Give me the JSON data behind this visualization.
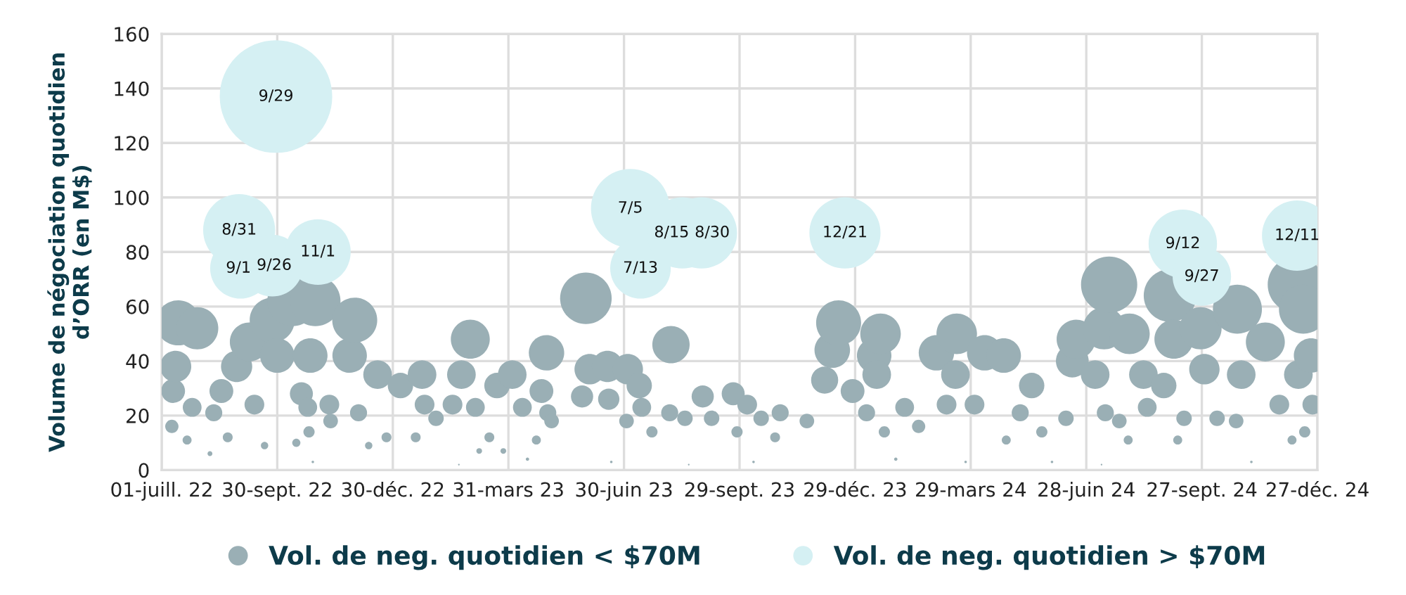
{
  "chart_data": {
    "type": "bubble",
    "ylabel": "Volume de négociation quotidien\nd’ORR (en M$)",
    "xlim": [
      "2022-07-01",
      "2024-12-27"
    ],
    "xticks": [
      {
        "value": "2022-07-01",
        "label": "01-juill. 22"
      },
      {
        "value": "2022-09-30",
        "label": "30-sept. 22"
      },
      {
        "value": "2022-12-30",
        "label": "30-déc. 22"
      },
      {
        "value": "2023-03-31",
        "label": "31-mars 23"
      },
      {
        "value": "2023-06-30",
        "label": "30-juin 23"
      },
      {
        "value": "2023-09-29",
        "label": "29-sept. 23"
      },
      {
        "value": "2023-12-29",
        "label": "29-déc. 23"
      },
      {
        "value": "2024-03-29",
        "label": "29-mars 24"
      },
      {
        "value": "2024-06-28",
        "label": "28-juin 24"
      },
      {
        "value": "2024-09-27",
        "label": "27-sept. 24"
      },
      {
        "value": "2024-12-27",
        "label": "27-déc. 24"
      }
    ],
    "ylim": [
      0,
      160
    ],
    "yticks": [
      0,
      20,
      40,
      60,
      80,
      100,
      120,
      140,
      160
    ],
    "grid": true,
    "legend": "bottom",
    "series": [
      {
        "name": "Vol. de neg. quotidien < $70M",
        "color": "#9aafb5",
        "x": [
          "2022-07-09",
          "2022-07-10",
          "2022-07-12",
          "2022-07-14",
          "2022-07-21",
          "2022-07-25",
          "2022-07-29",
          "2022-08-08",
          "2022-08-11",
          "2022-08-17",
          "2022-08-22",
          "2022-08-29",
          "2022-09-08",
          "2022-09-12",
          "2022-09-20",
          "2022-09-26",
          "2022-09-30",
          "2022-10-12",
          "2022-10-15",
          "2022-10-19",
          "2022-10-24",
          "2022-10-25",
          "2022-10-26",
          "2022-10-28",
          "2022-10-30",
          "2022-11-10",
          "2022-11-11",
          "2022-11-26",
          "2022-11-30",
          "2022-12-03",
          "2022-12-11",
          "2022-12-18",
          "2022-12-25",
          "2023-01-05",
          "2023-01-17",
          "2023-01-22",
          "2023-01-24",
          "2023-02-02",
          "2023-02-15",
          "2023-02-20",
          "2023-02-22",
          "2023-03-01",
          "2023-03-05",
          "2023-03-08",
          "2023-03-16",
          "2023-03-22",
          "2023-03-27",
          "2023-04-03",
          "2023-04-11",
          "2023-04-15",
          "2023-04-22",
          "2023-04-26",
          "2023-04-30",
          "2023-05-01",
          "2023-05-04",
          "2023-05-28",
          "2023-05-31",
          "2023-06-03",
          "2023-06-17",
          "2023-06-18",
          "2023-06-20",
          "2023-07-02",
          "2023-07-03",
          "2023-07-12",
          "2023-07-14",
          "2023-07-22",
          "2023-08-05",
          "2023-08-06",
          "2023-08-17",
          "2023-08-20",
          "2023-08-31",
          "2023-09-07",
          "2023-09-24",
          "2023-09-27",
          "2023-10-05",
          "2023-10-10",
          "2023-10-16",
          "2023-10-27",
          "2023-10-31",
          "2023-11-21",
          "2023-12-05",
          "2023-12-11",
          "2023-12-16",
          "2023-12-27",
          "2024-01-07",
          "2024-01-13",
          "2024-01-15",
          "2024-01-18",
          "2024-01-21",
          "2024-01-30",
          "2024-02-06",
          "2024-02-17",
          "2024-03-02",
          "2024-03-10",
          "2024-03-17",
          "2024-03-18",
          "2024-03-25",
          "2024-04-01",
          "2024-04-09",
          "2024-04-24",
          "2024-04-26",
          "2024-05-07",
          "2024-05-16",
          "2024-05-24",
          "2024-06-01",
          "2024-06-12",
          "2024-06-17",
          "2024-06-20",
          "2024-07-05",
          "2024-07-10",
          "2024-07-12",
          "2024-07-13",
          "2024-07-16",
          "2024-07-24",
          "2024-07-31",
          "2024-08-01",
          "2024-08-12",
          "2024-08-15",
          "2024-08-28",
          "2024-09-02",
          "2024-09-05",
          "2024-09-08",
          "2024-09-13",
          "2024-09-26",
          "2024-09-29",
          "2024-10-09",
          "2024-10-24",
          "2024-10-25",
          "2024-10-28",
          "2024-11-05",
          "2024-11-16",
          "2024-11-27",
          "2024-12-07",
          "2024-12-10",
          "2024-12-12",
          "2024-12-16",
          "2024-12-17",
          "2024-12-22",
          "2024-12-23"
        ],
        "values": [
          16,
          29,
          38,
          54,
          11,
          23,
          52,
          6,
          21,
          29,
          12,
          38,
          47,
          24,
          9,
          55,
          42,
          62,
          10,
          28,
          23,
          14,
          42,
          3,
          62,
          24,
          18,
          42,
          55,
          21,
          9,
          35,
          12,
          31,
          12,
          35,
          24,
          19,
          24,
          2,
          35,
          48,
          23,
          7,
          12,
          31,
          7,
          35,
          23,
          4,
          11,
          29,
          43,
          21,
          18,
          27,
          63,
          37,
          38,
          26,
          3,
          18,
          37,
          31,
          23,
          14,
          21,
          46,
          19,
          2,
          27,
          19,
          28,
          14,
          24,
          3,
          19,
          12,
          21,
          18,
          33,
          44,
          54,
          29,
          21,
          42,
          35,
          50,
          14,
          4,
          23,
          16,
          43,
          24,
          35,
          50,
          3,
          24,
          43,
          42,
          11,
          21,
          31,
          14,
          3,
          19,
          40,
          48,
          35,
          2,
          52,
          21,
          68,
          18,
          11,
          50,
          35,
          23,
          31,
          64,
          48,
          11,
          19,
          52,
          37,
          19,
          18,
          59,
          35,
          3,
          47,
          24,
          11,
          68,
          35,
          59,
          14,
          42,
          24
        ],
        "sizes": [
          0.014,
          0.045,
          0.077,
          0.16,
          0.0064,
          0.028,
          0.14,
          0.0019,
          0.023,
          0.045,
          0.0077,
          0.077,
          0.12,
          0.031,
          0.0043,
          0.16,
          0.094,
          0.2,
          0.0053,
          0.042,
          0.028,
          0.01,
          0.094,
          0.0005,
          0.2,
          0.031,
          0.017,
          0.094,
          0.16,
          0.023,
          0.0043,
          0.065,
          0.0077,
          0.051,
          0.0077,
          0.065,
          0.031,
          0.019,
          0.031,
          0.0002,
          0.065,
          0.12,
          0.028,
          0.0026,
          0.0077,
          0.051,
          0.0026,
          0.065,
          0.028,
          0.0009,
          0.0064,
          0.045,
          0.099,
          0.023,
          0.017,
          0.039,
          0.21,
          0.073,
          0.077,
          0.036,
          0.0005,
          0.017,
          0.073,
          0.051,
          0.028,
          0.01,
          0.023,
          0.11,
          0.019,
          0.0002,
          0.039,
          0.019,
          0.042,
          0.01,
          0.031,
          0.0005,
          0.019,
          0.0077,
          0.023,
          0.017,
          0.058,
          0.1,
          0.16,
          0.045,
          0.023,
          0.094,
          0.065,
          0.13,
          0.01,
          0.0009,
          0.028,
          0.014,
          0.099,
          0.031,
          0.065,
          0.13,
          0.0005,
          0.031,
          0.099,
          0.094,
          0.0064,
          0.023,
          0.051,
          0.01,
          0.0005,
          0.019,
          0.085,
          0.12,
          0.065,
          0.0002,
          0.14,
          0.023,
          0.25,
          0.017,
          0.0064,
          0.13,
          0.065,
          0.028,
          0.051,
          0.22,
          0.12,
          0.0064,
          0.019,
          0.14,
          0.073,
          0.019,
          0.017,
          0.19,
          0.065,
          0.0005,
          0.12,
          0.031,
          0.0064,
          0.25,
          0.065,
          0.19,
          0.01,
          0.094,
          0.031
        ]
      },
      {
        "name": "Vol. de neg. quotidien > $70M",
        "color": "#d5f0f3",
        "x": [
          "2022-08-31",
          "2022-09-01",
          "2022-09-26",
          "2022-09-29",
          "2022-11-01",
          "2023-07-05",
          "2023-07-13",
          "2023-08-15",
          "2023-08-30",
          "2023-12-21",
          "2024-09-12",
          "2024-09-27",
          "2024-12-11"
        ],
        "values": [
          88,
          74,
          75,
          137,
          80,
          96,
          74,
          87,
          87,
          87,
          83,
          71,
          86
        ],
        "sizes": [
          0.41,
          0.29,
          0.3,
          1,
          0.34,
          0.49,
          0.29,
          0.4,
          0.4,
          0.4,
          0.37,
          0.27,
          0.39
        ]
      }
    ],
    "annotations": [
      {
        "text": "8/31",
        "x": "2022-08-31",
        "y": 88
      },
      {
        "text": "9/1",
        "x": "2022-09-01",
        "y": 74
      },
      {
        "text": "9/26",
        "x": "2022-09-26",
        "y": 75
      },
      {
        "text": "9/29",
        "x": "2022-09-29",
        "y": 137
      },
      {
        "text": "11/1",
        "x": "2022-11-01",
        "y": 80
      },
      {
        "text": "7/5",
        "x": "2023-07-05",
        "y": 96
      },
      {
        "text": "7/13",
        "x": "2023-07-13",
        "y": 74
      },
      {
        "text": "8/15",
        "x": "2023-08-15",
        "y": 87
      },
      {
        "text": "8/30",
        "x": "2023-08-30",
        "y": 87
      },
      {
        "text": "12/21",
        "x": "2023-12-21",
        "y": 87
      },
      {
        "text": "9/12",
        "x": "2024-09-12",
        "y": 83
      },
      {
        "text": "9/27",
        "x": "2024-09-27",
        "y": 71
      },
      {
        "text": "12/11",
        "x": "2024-12-11",
        "y": 86
      }
    ]
  }
}
